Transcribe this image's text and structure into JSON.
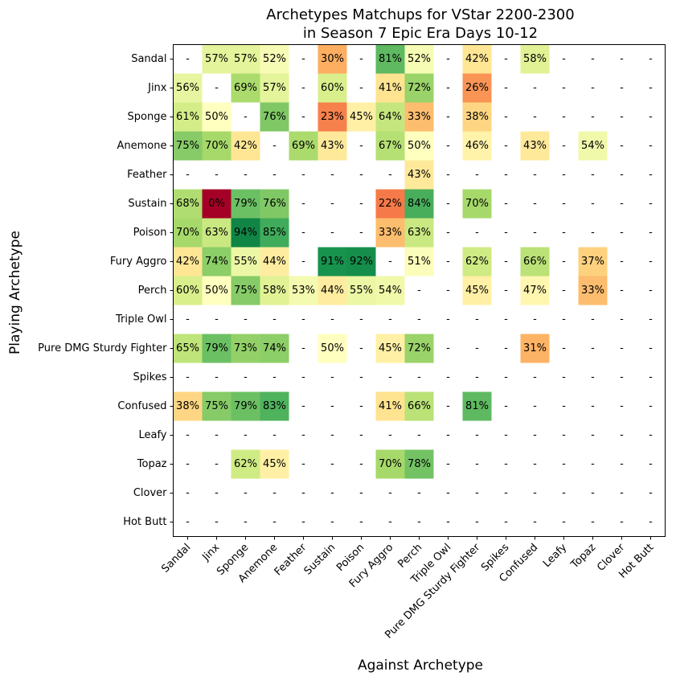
{
  "chart_data": {
    "type": "heatmap",
    "title_line1": "Archetypes Matchups for VStar 2200-2300",
    "title_line2": "in Season 7 Epic Era Days 10-12",
    "xlabel": "Against Archetype",
    "ylabel": "Playing Archetype",
    "x_categories": [
      "Sandal",
      "Jinx",
      "Sponge",
      "Anemone",
      "Feather",
      "Sustain",
      "Poison",
      "Fury Aggro",
      "Perch",
      "Triple Owl",
      "Pure DMG Sturdy Fighter",
      "Spikes",
      "Confused",
      "Leafy",
      "Topaz",
      "Clover",
      "Hot Butt"
    ],
    "y_categories": [
      "Sandal",
      "Jinx",
      "Sponge",
      "Anemone",
      "Feather",
      "Sustain",
      "Poison",
      "Fury Aggro",
      "Perch",
      "Triple Owl",
      "Pure DMG Sturdy Fighter",
      "Spikes",
      "Confused",
      "Leafy",
      "Topaz",
      "Clover",
      "Hot Butt"
    ],
    "colormap": "RdYlGn",
    "value_range": [
      0,
      100
    ],
    "missing_label": "-",
    "values": [
      [
        null,
        57,
        57,
        52,
        null,
        30,
        null,
        81,
        52,
        null,
        42,
        null,
        58,
        null,
        null,
        null,
        null
      ],
      [
        56,
        null,
        69,
        57,
        null,
        60,
        null,
        41,
        72,
        null,
        26,
        null,
        null,
        null,
        null,
        null,
        null
      ],
      [
        61,
        50,
        null,
        76,
        null,
        23,
        45,
        64,
        33,
        null,
        38,
        null,
        null,
        null,
        null,
        null,
        null
      ],
      [
        75,
        70,
        42,
        null,
        69,
        43,
        null,
        67,
        50,
        null,
        46,
        null,
        43,
        null,
        54,
        null,
        null
      ],
      [
        null,
        null,
        null,
        null,
        null,
        null,
        null,
        null,
        43,
        null,
        null,
        null,
        null,
        null,
        null,
        null,
        null
      ],
      [
        68,
        0,
        79,
        76,
        null,
        null,
        null,
        22,
        84,
        null,
        70,
        null,
        null,
        null,
        null,
        null,
        null
      ],
      [
        70,
        63,
        94,
        85,
        null,
        null,
        null,
        33,
        63,
        null,
        null,
        null,
        null,
        null,
        null,
        null,
        null
      ],
      [
        42,
        74,
        55,
        44,
        null,
        91,
        92,
        null,
        51,
        null,
        62,
        null,
        66,
        null,
        37,
        null,
        null
      ],
      [
        60,
        50,
        75,
        58,
        53,
        44,
        55,
        54,
        null,
        null,
        45,
        null,
        47,
        null,
        33,
        null,
        null
      ],
      [
        null,
        null,
        null,
        null,
        null,
        null,
        null,
        null,
        null,
        null,
        null,
        null,
        null,
        null,
        null,
        null,
        null
      ],
      [
        65,
        79,
        73,
        74,
        null,
        50,
        null,
        45,
        72,
        null,
        null,
        null,
        31,
        null,
        null,
        null,
        null
      ],
      [
        null,
        null,
        null,
        null,
        null,
        null,
        null,
        null,
        null,
        null,
        null,
        null,
        null,
        null,
        null,
        null,
        null
      ],
      [
        38,
        75,
        79,
        83,
        null,
        null,
        null,
        41,
        66,
        null,
        81,
        null,
        null,
        null,
        null,
        null,
        null
      ],
      [
        null,
        null,
        null,
        null,
        null,
        null,
        null,
        null,
        null,
        null,
        null,
        null,
        null,
        null,
        null,
        null,
        null
      ],
      [
        null,
        null,
        62,
        45,
        null,
        null,
        null,
        70,
        78,
        null,
        null,
        null,
        null,
        null,
        null,
        null,
        null
      ],
      [
        null,
        null,
        null,
        null,
        null,
        null,
        null,
        null,
        null,
        null,
        null,
        null,
        null,
        null,
        null,
        null,
        null
      ],
      [
        null,
        null,
        null,
        null,
        null,
        null,
        null,
        null,
        null,
        null,
        null,
        null,
        null,
        null,
        null,
        null,
        null
      ]
    ]
  }
}
